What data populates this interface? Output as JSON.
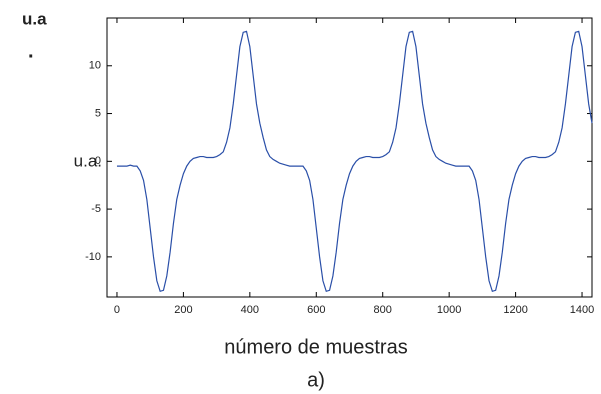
{
  "chart_data": {
    "type": "line",
    "top_label": "u.a",
    "top_dot": ".",
    "ylabel": "u.a.",
    "xlabel": "número de muestras",
    "caption": "a)",
    "x": [
      0,
      10,
      20,
      30,
      40,
      50,
      60,
      70,
      80,
      90,
      100,
      110,
      120,
      130,
      140,
      150,
      160,
      170,
      180,
      190,
      200,
      210,
      220,
      230,
      240,
      250,
      260,
      270,
      280,
      290,
      300,
      310,
      320,
      330,
      340,
      350,
      360,
      370,
      380,
      390,
      400,
      410,
      420,
      430,
      440,
      450,
      460,
      470,
      480,
      490,
      500,
      510,
      520,
      530,
      540,
      550,
      560,
      570,
      580,
      590,
      600,
      610,
      620,
      630,
      640,
      650,
      660,
      670,
      680,
      690,
      700,
      710,
      720,
      730,
      740,
      750,
      760,
      770,
      780,
      790,
      800,
      810,
      820,
      830,
      840,
      850,
      860,
      870,
      880,
      890,
      900,
      910,
      920,
      930,
      940,
      950,
      960,
      970,
      980,
      990,
      1000,
      1010,
      1020,
      1030,
      1040,
      1050,
      1060,
      1070,
      1080,
      1090,
      1100,
      1110,
      1120,
      1130,
      1140,
      1150,
      1160,
      1170,
      1180,
      1190,
      1200,
      1210,
      1220,
      1230,
      1240,
      1250,
      1260,
      1270,
      1280,
      1290,
      1300,
      1310,
      1320,
      1330,
      1340,
      1350,
      1360,
      1370,
      1380,
      1390,
      1400,
      1410,
      1420,
      1430
    ],
    "series": [
      {
        "color": "#2a4fa8",
        "values": [
          -0.5,
          -0.5,
          -0.5,
          -0.5,
          -0.4,
          -0.5,
          -0.5,
          -1,
          -2,
          -4,
          -7,
          -10,
          -12.5,
          -13.6,
          -13.5,
          -12,
          -9.5,
          -6.5,
          -4,
          -2.5,
          -1.3,
          -0.5,
          0,
          0.3,
          0.4,
          0.5,
          0.5,
          0.4,
          0.4,
          0.4,
          0.5,
          0.7,
          1,
          2,
          3.5,
          6,
          9,
          12,
          13.5,
          13.6,
          12,
          9,
          6,
          4,
          2.5,
          1.2,
          0.5,
          0.2,
          0,
          -0.2,
          -0.3,
          -0.4,
          -0.5,
          -0.5,
          -0.5,
          -0.5,
          -0.5,
          -1,
          -2,
          -4,
          -7,
          -10,
          -12.5,
          -13.6,
          -13.5,
          -12,
          -9.5,
          -6.5,
          -4,
          -2.5,
          -1.3,
          -0.5,
          0,
          0.3,
          0.4,
          0.5,
          0.5,
          0.4,
          0.4,
          0.4,
          0.5,
          0.7,
          1,
          2,
          3.5,
          6,
          9,
          12,
          13.5,
          13.6,
          12,
          9,
          6,
          4,
          2.5,
          1.2,
          0.5,
          0.2,
          0,
          -0.2,
          -0.3,
          -0.4,
          -0.5,
          -0.5,
          -0.5,
          -0.5,
          -0.5,
          -1,
          -2,
          -4,
          -7,
          -10,
          -12.5,
          -13.6,
          -13.5,
          -12,
          -9.5,
          -6.5,
          -4,
          -2.5,
          -1.3,
          -0.5,
          0,
          0.3,
          0.4,
          0.5,
          0.5,
          0.4,
          0.4,
          0.4,
          0.5,
          0.7,
          1,
          2,
          3.5,
          6,
          9,
          12,
          13.5,
          13.6,
          12,
          9,
          6,
          4
        ]
      }
    ],
    "xlim": [
      -30,
      1430
    ],
    "ylim": [
      -14.2,
      15
    ],
    "xticks": [
      0,
      200,
      400,
      600,
      800,
      1000,
      1200,
      1400
    ],
    "yticks": [
      -10,
      -5,
      0,
      5,
      10
    ]
  }
}
